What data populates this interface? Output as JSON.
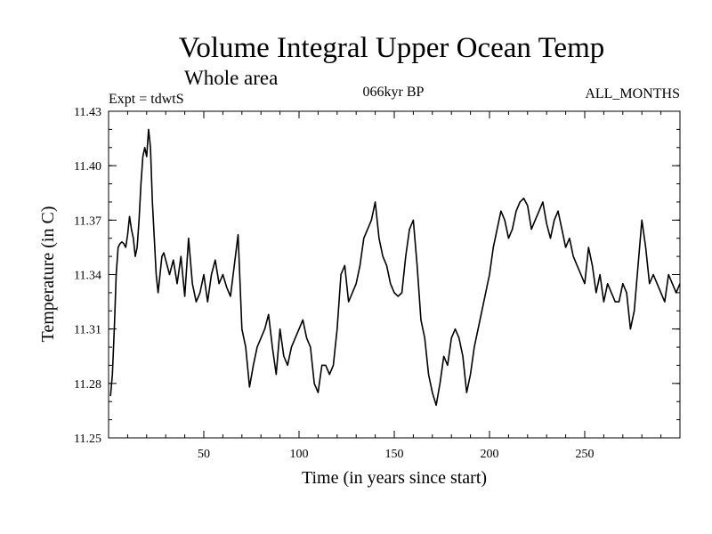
{
  "chart_data": {
    "type": "line",
    "title": "Volume Integral Upper Ocean Temp",
    "subtitle": "Whole area",
    "experiment": "Expt = tdwtS",
    "period": "066kyr BP",
    "months": "ALL_MONTHS",
    "xlabel": "Time (in years since start)",
    "ylabel": "Temperature (in C)",
    "xlim": [
      0,
      300
    ],
    "ylim": [
      11.25,
      11.43
    ],
    "x_ticks": [
      50,
      100,
      150,
      200,
      250
    ],
    "x_tick_labels": [
      "50",
      "100",
      "150",
      "200",
      "250"
    ],
    "y_ticks": [
      11.25,
      11.28,
      11.31,
      11.34,
      11.37,
      11.4,
      11.43
    ],
    "y_tick_labels": [
      "11.25",
      "11.28",
      "11.31",
      "11.34",
      "11.37",
      "11.40",
      "11.43"
    ],
    "grid": false,
    "series": [
      {
        "name": "Volume Integral Upper Ocean Temp",
        "x": [
          1,
          2,
          3,
          4,
          5,
          6,
          7,
          8,
          9,
          10,
          11,
          12,
          13,
          14,
          15,
          16,
          17,
          18,
          19,
          20,
          21,
          22,
          23,
          24,
          25,
          26,
          27,
          28,
          29,
          30,
          32,
          34,
          36,
          38,
          40,
          42,
          44,
          46,
          48,
          50,
          52,
          54,
          56,
          58,
          60,
          62,
          64,
          66,
          68,
          70,
          72,
          74,
          76,
          78,
          80,
          82,
          84,
          86,
          88,
          90,
          92,
          94,
          96,
          98,
          100,
          102,
          104,
          106,
          108,
          110,
          112,
          114,
          116,
          118,
          120,
          122,
          124,
          126,
          128,
          130,
          132,
          134,
          136,
          138,
          140,
          142,
          144,
          146,
          148,
          150,
          152,
          154,
          156,
          158,
          160,
          162,
          164,
          166,
          168,
          170,
          172,
          174,
          176,
          178,
          180,
          182,
          184,
          186,
          188,
          190,
          192,
          194,
          196,
          198,
          200,
          202,
          204,
          206,
          208,
          210,
          212,
          214,
          216,
          218,
          220,
          222,
          224,
          226,
          228,
          230,
          232,
          234,
          236,
          238,
          240,
          242,
          244,
          246,
          248,
          250,
          252,
          254,
          256,
          258,
          260,
          262,
          264,
          266,
          268,
          270,
          272,
          274,
          276,
          278,
          280,
          282,
          284,
          286,
          288,
          290,
          292,
          294,
          296,
          298,
          300
        ],
        "values": [
          11.273,
          11.285,
          11.31,
          11.34,
          11.355,
          11.357,
          11.358,
          11.357,
          11.355,
          11.362,
          11.372,
          11.365,
          11.36,
          11.35,
          11.355,
          11.37,
          11.39,
          11.405,
          11.41,
          11.405,
          11.42,
          11.41,
          11.38,
          11.36,
          11.34,
          11.33,
          11.34,
          11.35,
          11.352,
          11.348,
          11.34,
          11.348,
          11.335,
          11.35,
          11.328,
          11.36,
          11.335,
          11.325,
          11.33,
          11.34,
          11.325,
          11.34,
          11.348,
          11.335,
          11.34,
          11.333,
          11.328,
          11.345,
          11.362,
          11.31,
          11.3,
          11.278,
          11.29,
          11.3,
          11.305,
          11.31,
          11.318,
          11.3,
          11.285,
          11.31,
          11.295,
          11.29,
          11.3,
          11.305,
          11.31,
          11.315,
          11.305,
          11.3,
          11.28,
          11.275,
          11.29,
          11.29,
          11.285,
          11.29,
          11.31,
          11.34,
          11.345,
          11.325,
          11.33,
          11.335,
          11.345,
          11.36,
          11.365,
          11.37,
          11.38,
          11.36,
          11.35,
          11.345,
          11.335,
          11.33,
          11.328,
          11.33,
          11.35,
          11.365,
          11.37,
          11.345,
          11.315,
          11.305,
          11.285,
          11.275,
          11.268,
          11.28,
          11.295,
          11.29,
          11.305,
          11.31,
          11.305,
          11.295,
          11.275,
          11.285,
          11.3,
          11.31,
          11.32,
          11.33,
          11.34,
          11.355,
          11.365,
          11.375,
          11.37,
          11.36,
          11.365,
          11.375,
          11.38,
          11.382,
          11.378,
          11.365,
          11.37,
          11.375,
          11.38,
          11.368,
          11.36,
          11.37,
          11.375,
          11.365,
          11.355,
          11.36,
          11.35,
          11.345,
          11.34,
          11.335,
          11.355,
          11.345,
          11.33,
          11.34,
          11.325,
          11.335,
          11.33,
          11.325,
          11.325,
          11.335,
          11.33,
          11.31,
          11.32,
          11.345,
          11.37,
          11.355,
          11.335,
          11.34,
          11.335,
          11.33,
          11.325,
          11.34,
          11.335,
          11.33,
          11.335
        ]
      }
    ]
  }
}
